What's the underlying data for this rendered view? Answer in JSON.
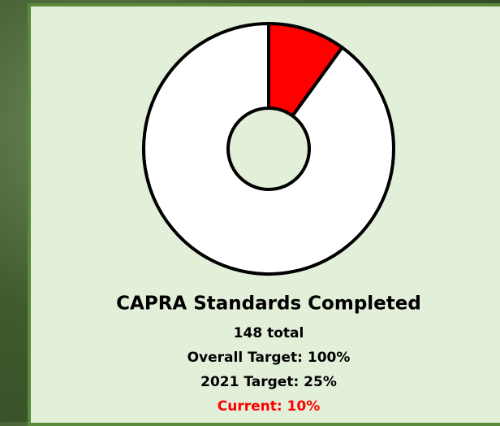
{
  "chart_data": {
    "type": "donut",
    "title": "CAPRA Standards Completed",
    "values": [
      10,
      90
    ],
    "colors": [
      "#ff0000",
      "#ffffff"
    ],
    "annotations": [
      "148 total",
      "Overall Target: 100%",
      "2021 Target: 25%",
      "Current: 10%"
    ]
  }
}
